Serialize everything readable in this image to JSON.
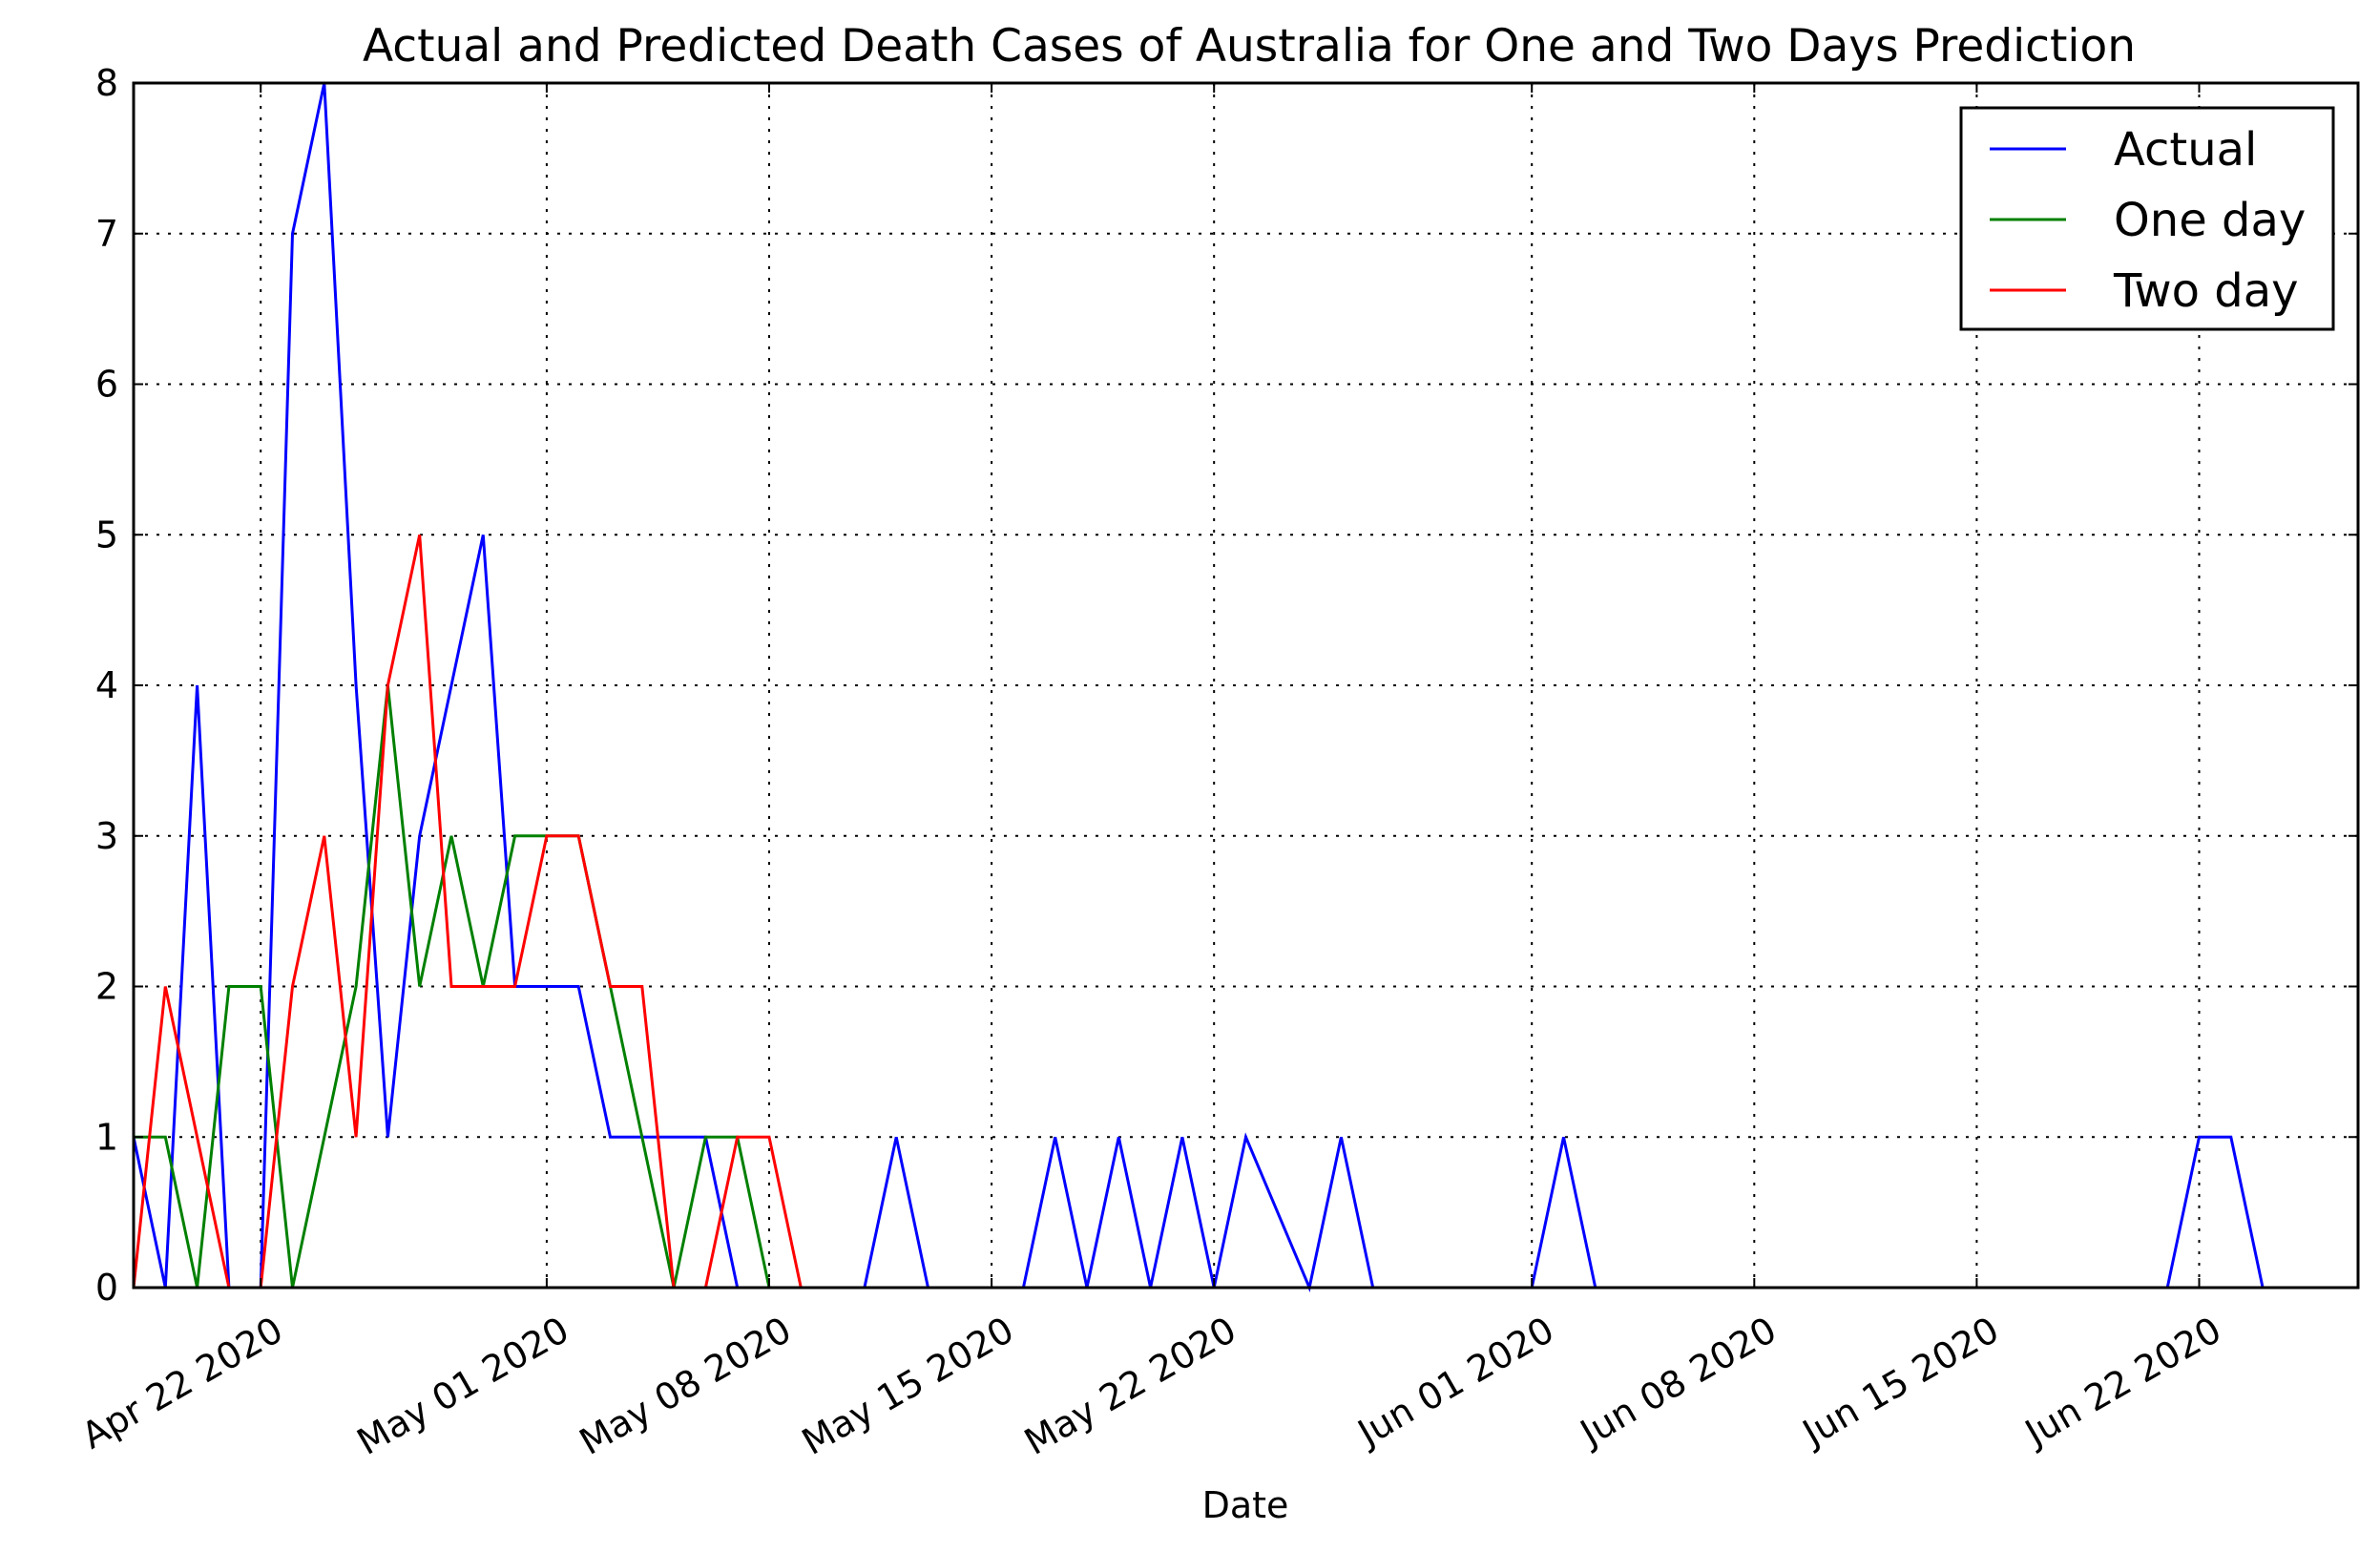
{
  "chart_data": {
    "type": "line",
    "title": "Actual and Predicted Death Cases of Australia for One and Two Days Prediction",
    "xlabel": "Date",
    "ylabel": "",
    "x_start": "2020-04-18",
    "x_tick_labels": [
      "Apr 22 2020",
      "May 01 2020",
      "May 08 2020",
      "May 15 2020",
      "May 22 2020",
      "Jun 01 2020",
      "Jun 08 2020",
      "Jun 15 2020",
      "Jun 22 2020"
    ],
    "x_tick_dates": [
      "2020-04-22",
      "2020-05-01",
      "2020-05-08",
      "2020-05-15",
      "2020-05-22",
      "2020-06-01",
      "2020-06-08",
      "2020-06-15",
      "2020-06-22"
    ],
    "xlim": [
      "2020-04-18",
      "2020-06-27"
    ],
    "ylim": [
      0,
      8
    ],
    "y_ticks": [
      "0",
      "1",
      "2",
      "3",
      "4",
      "5",
      "6",
      "7",
      "8"
    ],
    "grid": true,
    "legend_position": "top-right",
    "series": [
      {
        "name": "Actual",
        "color": "#0000ff",
        "values": [
          1,
          0,
          4,
          0,
          0,
          7,
          8,
          4,
          1,
          3,
          4,
          5,
          2,
          2,
          2,
          1,
          1,
          1,
          1,
          0,
          0,
          0,
          0,
          0,
          1,
          0,
          0,
          0,
          0,
          1,
          0,
          1,
          0,
          1,
          0,
          1,
          0.5,
          0,
          1,
          0,
          0,
          0,
          0,
          0,
          0,
          1,
          0,
          0,
          0,
          0,
          0,
          0,
          0,
          0,
          0,
          0,
          0,
          0,
          0,
          0,
          0,
          0,
          0,
          0,
          0,
          1,
          1,
          0,
          0,
          0
        ]
      },
      {
        "name": "One day",
        "color": "#008000",
        "values": [
          1,
          1,
          0,
          2,
          2,
          0,
          1,
          2,
          4,
          2,
          3,
          2,
          3,
          3,
          3,
          2,
          1,
          0,
          1,
          1,
          0,
          0,
          0,
          0,
          0,
          0,
          0,
          0,
          0,
          0,
          0,
          0,
          0,
          0,
          0,
          0,
          0,
          0,
          0,
          0,
          0,
          0,
          0,
          0,
          0,
          0,
          0,
          0,
          0,
          0,
          0,
          0,
          0,
          0,
          0,
          0,
          0,
          0,
          0,
          0,
          0,
          0,
          0,
          0,
          0,
          0,
          0,
          0,
          0,
          0
        ]
      },
      {
        "name": "Two day",
        "color": "#ff0000",
        "values": [
          0,
          2,
          1,
          0,
          0,
          2,
          3,
          1,
          4,
          5,
          2,
          2,
          2,
          3,
          3,
          2,
          2,
          0,
          0,
          1,
          1,
          0,
          0,
          0,
          0,
          0,
          0,
          0,
          0,
          0,
          0,
          0,
          0,
          0,
          0,
          0,
          0,
          0,
          0,
          0,
          0,
          0,
          0,
          0,
          0,
          0,
          0,
          0,
          0,
          0,
          0,
          0,
          0,
          0,
          0,
          0,
          0,
          0,
          0,
          0,
          0,
          0,
          0,
          0,
          0,
          0,
          0,
          0,
          0,
          0
        ]
      }
    ],
    "x_values_note_index_is_day_offset_from_x_start": true
  }
}
